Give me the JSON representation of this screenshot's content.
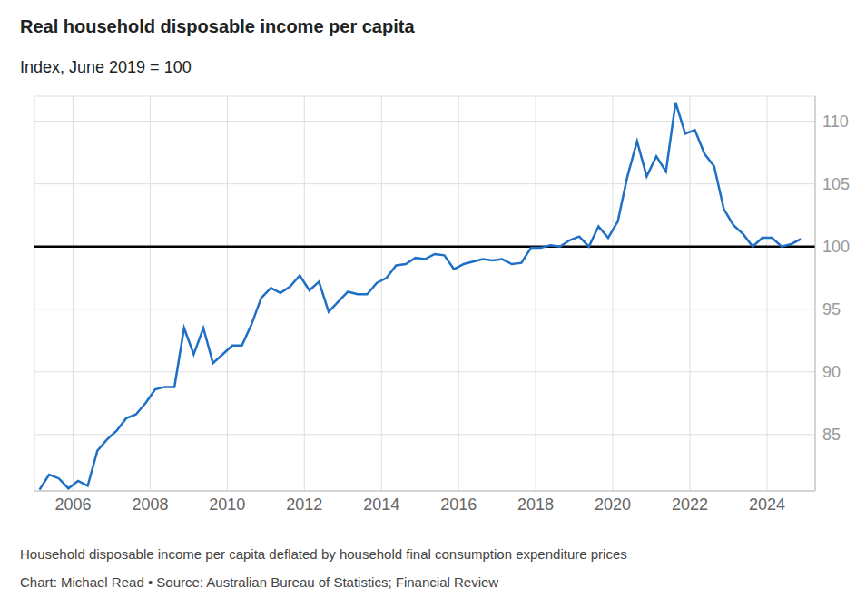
{
  "chart_data": {
    "type": "line",
    "title": "Real household disposable income per capita",
    "subtitle": "Index, June 2019 = 100",
    "note": "Household disposable income per capita deflated by household final consumption expenditure prices",
    "source": "Chart: Michael Read • Source: Australian Bureau of Statistics; Financial Review",
    "x": [
      2005.13,
      2005.38,
      2005.63,
      2005.88,
      2006.13,
      2006.38,
      2006.63,
      2006.88,
      2007.13,
      2007.38,
      2007.63,
      2007.88,
      2008.13,
      2008.38,
      2008.63,
      2008.88,
      2009.13,
      2009.38,
      2009.63,
      2009.88,
      2010.13,
      2010.38,
      2010.63,
      2010.88,
      2011.13,
      2011.38,
      2011.63,
      2011.88,
      2012.13,
      2012.38,
      2012.63,
      2012.88,
      2013.13,
      2013.38,
      2013.63,
      2013.88,
      2014.13,
      2014.38,
      2014.63,
      2014.88,
      2015.13,
      2015.38,
      2015.63,
      2015.88,
      2016.13,
      2016.38,
      2016.63,
      2016.88,
      2017.13,
      2017.38,
      2017.63,
      2017.88,
      2018.13,
      2018.38,
      2018.63,
      2018.88,
      2019.13,
      2019.38,
      2019.63,
      2019.88,
      2020.13,
      2020.38,
      2020.63,
      2020.88,
      2021.13,
      2021.38,
      2021.63,
      2021.88,
      2022.13,
      2022.38,
      2022.63,
      2022.88,
      2023.13,
      2023.38,
      2023.63,
      2023.88,
      2024.13,
      2024.38,
      2024.63,
      2024.88
    ],
    "values": [
      80.6,
      81.8,
      81.5,
      80.7,
      81.3,
      80.9,
      83.7,
      84.6,
      85.3,
      86.3,
      86.6,
      87.5,
      88.6,
      88.8,
      88.8,
      93.5,
      91.4,
      93.5,
      90.7,
      91.4,
      92.1,
      92.1,
      93.8,
      95.9,
      96.7,
      96.3,
      96.8,
      97.7,
      96.5,
      97.2,
      94.8,
      95.6,
      96.4,
      96.2,
      96.2,
      97.1,
      97.5,
      98.5,
      98.6,
      99.1,
      99.0,
      99.4,
      99.3,
      98.2,
      98.6,
      98.8,
      99.0,
      98.9,
      99.0,
      98.6,
      98.7,
      99.9,
      99.9,
      100.1,
      100.0,
      100.5,
      100.8,
      100.0,
      101.6,
      100.7,
      102.0,
      105.6,
      108.4,
      105.6,
      107.2,
      106.0,
      111.5,
      109.0,
      109.3,
      107.4,
      106.4,
      103.0,
      101.7,
      101.0,
      100.0,
      100.7,
      100.7,
      100.0,
      100.2,
      100.6
    ],
    "color": "#1f6fc5",
    "reference_line": 100,
    "xlim": [
      2005,
      2025.25
    ],
    "xticks": [
      2006,
      2008,
      2010,
      2012,
      2014,
      2016,
      2018,
      2020,
      2022,
      2024
    ],
    "ylim": [
      80.5,
      112
    ],
    "yticks": [
      85,
      90,
      95,
      100,
      105,
      110
    ],
    "grid": true
  }
}
